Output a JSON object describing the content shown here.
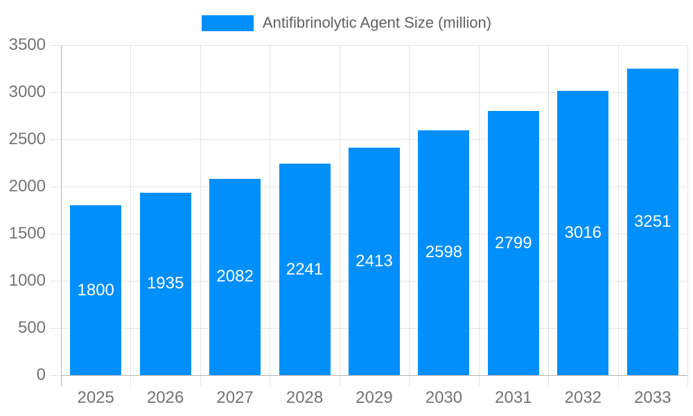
{
  "chart_data": {
    "type": "bar",
    "title": "Antifibrinolytic Agent Size (million)",
    "categories": [
      "2025",
      "2026",
      "2027",
      "2028",
      "2029",
      "2030",
      "2031",
      "2032",
      "2033"
    ],
    "series": [
      {
        "name": "Antifibrinolytic Agent Size (million)",
        "values": [
          1800,
          1935,
          2082,
          2241,
          2413,
          2598,
          2799,
          3016,
          3251
        ]
      }
    ],
    "xlabel": "",
    "ylabel": "",
    "ylim": [
      0,
      3500
    ],
    "y_ticks": [
      0,
      500,
      1000,
      1500,
      2000,
      2500,
      3000,
      3500
    ],
    "grid": "on",
    "legend_position": "top-center",
    "data_labels": "inside-center"
  },
  "colors": {
    "bar": "#008FFB",
    "grid_line": "#e3e3e3",
    "axis_line": "#b3b3b3",
    "tick_label": "#737373",
    "legend_text": "#606060",
    "data_label": "#ffffff",
    "background": "#ffffff"
  }
}
